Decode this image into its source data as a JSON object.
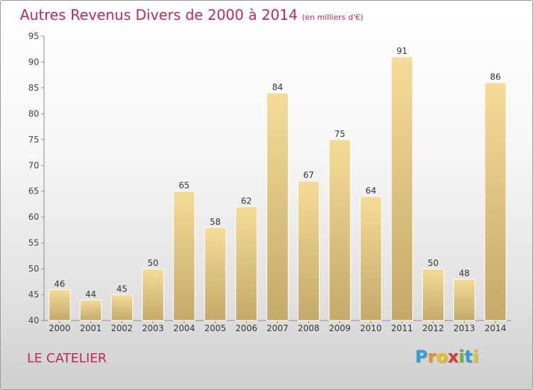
{
  "header": {
    "title": "Autres Revenus Divers de 2000 à 2014",
    "unit": "(en milliers d'€)"
  },
  "footer": {
    "city": "LE CATELIER",
    "logo_letters": [
      "P",
      "r",
      "o",
      "x",
      "i",
      "t",
      "i"
    ],
    "logo_colors": [
      "#2f9fd8",
      "#f08a1c",
      "#e8c21a",
      "#d63a3a",
      "#6ab52e",
      "#2f9fd8",
      "#e8c21a"
    ]
  },
  "chart_data": {
    "type": "bar",
    "categories": [
      "2000",
      "2001",
      "2002",
      "2003",
      "2004",
      "2005",
      "2006",
      "2007",
      "2008",
      "2009",
      "2010",
      "2011",
      "2012",
      "2013",
      "2014"
    ],
    "values": [
      46,
      44,
      45,
      50,
      65,
      58,
      62,
      84,
      67,
      75,
      64,
      91,
      50,
      48,
      86
    ],
    "ylim": [
      40,
      95
    ],
    "yticks": [
      40,
      45,
      50,
      55,
      60,
      65,
      70,
      75,
      80,
      85,
      90,
      95
    ],
    "grid": false,
    "bar_color_light": "#f5dc96",
    "bar_color_dark": "#c4a96a"
  }
}
